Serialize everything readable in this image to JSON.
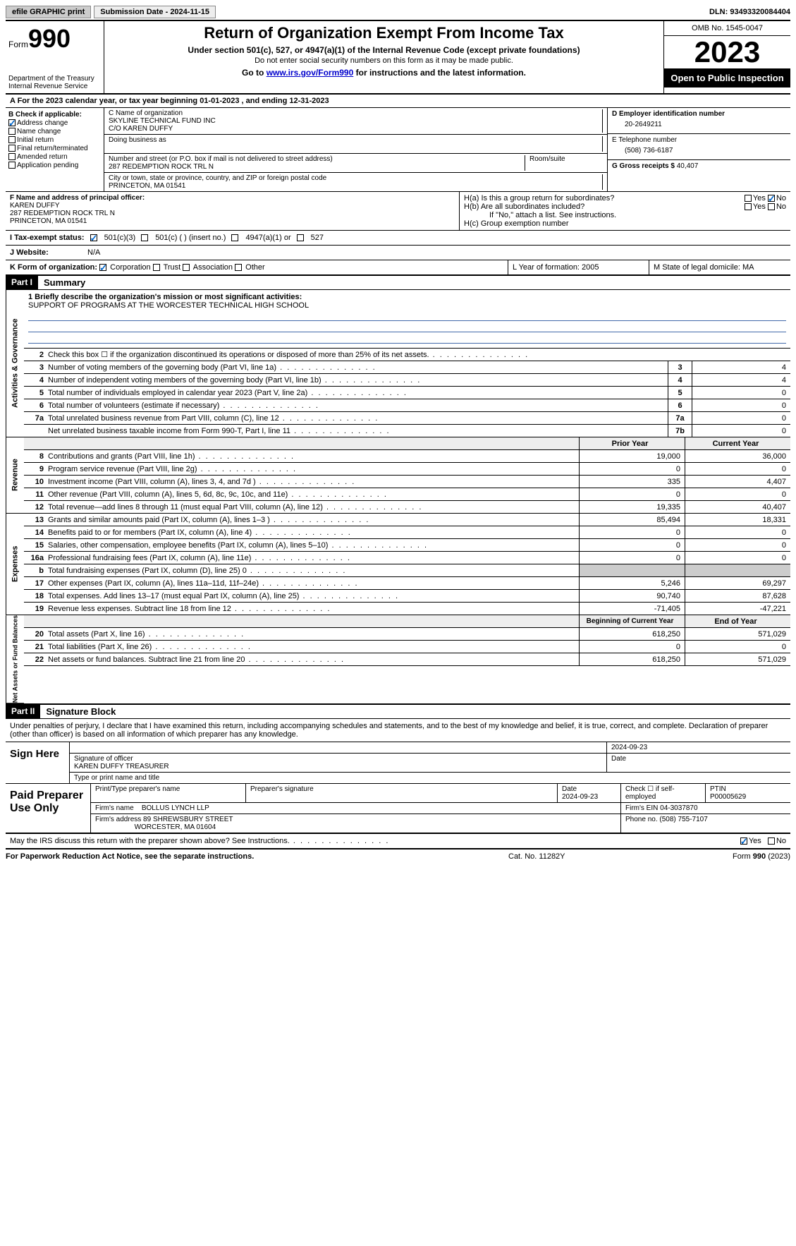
{
  "topbar": {
    "efile": "efile GRAPHIC print",
    "submission": "Submission Date - 2024-11-15",
    "dln": "DLN: 93493320084404"
  },
  "header": {
    "form_label": "Form",
    "form_num": "990",
    "dept": "Department of the Treasury\nInternal Revenue Service",
    "title": "Return of Organization Exempt From Income Tax",
    "sub1": "Under section 501(c), 527, or 4947(a)(1) of the Internal Revenue Code (except private foundations)",
    "sub2": "Do not enter social security numbers on this form as it may be made public.",
    "sub3_pre": "Go to ",
    "sub3_link": "www.irs.gov/Form990",
    "sub3_post": " for instructions and the latest information.",
    "omb": "OMB No. 1545-0047",
    "year": "2023",
    "open": "Open to Public Inspection"
  },
  "line_a": "A For the 2023 calendar year, or tax year beginning 01-01-2023   , and ending 12-31-2023",
  "box_b": {
    "label": "B Check if applicable:",
    "address": "Address change",
    "name": "Name change",
    "initial": "Initial return",
    "final": "Final return/terminated",
    "amended": "Amended return",
    "app": "Application pending"
  },
  "box_c": {
    "name_lbl": "C Name of organization",
    "name": "SKYLINE TECHNICAL FUND INC",
    "co": "C/O KAREN DUFFY",
    "dba_lbl": "Doing business as",
    "street_lbl": "Number and street (or P.O. box if mail is not delivered to street address)",
    "street": "287 REDEMPTION ROCK TRL N",
    "room_lbl": "Room/suite",
    "city_lbl": "City or town, state or province, country, and ZIP or foreign postal code",
    "city": "PRINCETON, MA  01541"
  },
  "box_d": {
    "lbl": "D Employer identification number",
    "val": "20-2649211"
  },
  "box_e": {
    "lbl": "E Telephone number",
    "val": "(508) 736-6187"
  },
  "box_g": {
    "lbl": "G Gross receipts $",
    "val": "40,407"
  },
  "box_f": {
    "lbl": "F  Name and address of principal officer:",
    "name": "KAREN DUFFY",
    "street": "287 REDEMPTION ROCK TRL N",
    "city": "PRINCETON, MA  01541"
  },
  "box_h": {
    "ha": "H(a)  Is this a group return for subordinates?",
    "hb": "H(b)  Are all subordinates included?",
    "hb_note": "If \"No,\" attach a list. See instructions.",
    "hc": "H(c)  Group exemption number",
    "yes": "Yes",
    "no": "No"
  },
  "row_i": {
    "lbl": "I   Tax-exempt status:",
    "o1": "501(c)(3)",
    "o2": "501(c) (  ) (insert no.)",
    "o3": "4947(a)(1) or",
    "o4": "527"
  },
  "row_j": {
    "lbl": "J   Website:",
    "val": "N/A"
  },
  "row_k": {
    "lbl": "K Form of organization:",
    "o1": "Corporation",
    "o2": "Trust",
    "o3": "Association",
    "o4": "Other",
    "l": "L Year of formation: 2005",
    "m": "M State of legal domicile: MA"
  },
  "part1": {
    "hdr": "Part I",
    "title": "Summary"
  },
  "mission": {
    "lbl": "1   Briefly describe the organization's mission or most significant activities:",
    "text": "SUPPORT OF PROGRAMS AT THE WORCESTER TECHNICAL HIGH SCHOOL"
  },
  "gov_lines": [
    {
      "n": "2",
      "d": "Check this box ☐ if the organization discontinued its operations or disposed of more than 25% of its net assets."
    },
    {
      "n": "3",
      "d": "Number of voting members of the governing body (Part VI, line 1a)",
      "box": "3",
      "v": "4"
    },
    {
      "n": "4",
      "d": "Number of independent voting members of the governing body (Part VI, line 1b)",
      "box": "4",
      "v": "4"
    },
    {
      "n": "5",
      "d": "Total number of individuals employed in calendar year 2023 (Part V, line 2a)",
      "box": "5",
      "v": "0"
    },
    {
      "n": "6",
      "d": "Total number of volunteers (estimate if necessary)",
      "box": "6",
      "v": "0"
    },
    {
      "n": "7a",
      "d": "Total unrelated business revenue from Part VIII, column (C), line 12",
      "box": "7a",
      "v": "0"
    },
    {
      "n": "",
      "d": "Net unrelated business taxable income from Form 990-T, Part I, line 11",
      "box": "7b",
      "v": "0"
    }
  ],
  "py_cy_hdr": {
    "py": "Prior Year",
    "cy": "Current Year"
  },
  "rev_lines": [
    {
      "n": "8",
      "d": "Contributions and grants (Part VIII, line 1h)",
      "py": "19,000",
      "cy": "36,000"
    },
    {
      "n": "9",
      "d": "Program service revenue (Part VIII, line 2g)",
      "py": "0",
      "cy": "0"
    },
    {
      "n": "10",
      "d": "Investment income (Part VIII, column (A), lines 3, 4, and 7d )",
      "py": "335",
      "cy": "4,407"
    },
    {
      "n": "11",
      "d": "Other revenue (Part VIII, column (A), lines 5, 6d, 8c, 9c, 10c, and 11e)",
      "py": "0",
      "cy": "0"
    },
    {
      "n": "12",
      "d": "Total revenue—add lines 8 through 11 (must equal Part VIII, column (A), line 12)",
      "py": "19,335",
      "cy": "40,407"
    }
  ],
  "exp_lines": [
    {
      "n": "13",
      "d": "Grants and similar amounts paid (Part IX, column (A), lines 1–3 )",
      "py": "85,494",
      "cy": "18,331"
    },
    {
      "n": "14",
      "d": "Benefits paid to or for members (Part IX, column (A), line 4)",
      "py": "0",
      "cy": "0"
    },
    {
      "n": "15",
      "d": "Salaries, other compensation, employee benefits (Part IX, column (A), lines 5–10)",
      "py": "0",
      "cy": "0"
    },
    {
      "n": "16a",
      "d": "Professional fundraising fees (Part IX, column (A), line 11e)",
      "py": "0",
      "cy": "0"
    },
    {
      "n": "b",
      "d": "Total fundraising expenses (Part IX, column (D), line 25) 0",
      "py": "shaded",
      "cy": "shaded"
    },
    {
      "n": "17",
      "d": "Other expenses (Part IX, column (A), lines 11a–11d, 11f–24e)",
      "py": "5,246",
      "cy": "69,297"
    },
    {
      "n": "18",
      "d": "Total expenses. Add lines 13–17 (must equal Part IX, column (A), line 25)",
      "py": "90,740",
      "cy": "87,628"
    },
    {
      "n": "19",
      "d": "Revenue less expenses. Subtract line 18 from line 12",
      "py": "-71,405",
      "cy": "-47,221"
    }
  ],
  "na_hdr": {
    "py": "Beginning of Current Year",
    "cy": "End of Year"
  },
  "na_lines": [
    {
      "n": "20",
      "d": "Total assets (Part X, line 16)",
      "py": "618,250",
      "cy": "571,029"
    },
    {
      "n": "21",
      "d": "Total liabilities (Part X, line 26)",
      "py": "0",
      "cy": "0"
    },
    {
      "n": "22",
      "d": "Net assets or fund balances. Subtract line 21 from line 20",
      "py": "618,250",
      "cy": "571,029"
    }
  ],
  "vtabs": {
    "gov": "Activities & Governance",
    "rev": "Revenue",
    "exp": "Expenses",
    "na": "Net Assets or Fund Balances"
  },
  "part2": {
    "hdr": "Part II",
    "title": "Signature Block"
  },
  "sig": {
    "decl": "Under penalties of perjury, I declare that I have examined this return, including accompanying schedules and statements, and to the best of my knowledge and belief, it is true, correct, and complete. Declaration of preparer (other than officer) is based on all information of which preparer has any knowledge.",
    "sign_here": "Sign Here",
    "date1": "2024-09-23",
    "sig_lbl": "Signature of officer",
    "officer": "KAREN DUFFY TREASURER",
    "type_lbl": "Type or print name and title",
    "date_lbl": "Date"
  },
  "prep": {
    "title": "Paid Preparer Use Only",
    "name_lbl": "Print/Type preparer's name",
    "sig_lbl": "Preparer's signature",
    "date_lbl": "Date",
    "date": "2024-09-23",
    "self_lbl": "Check ☐ if self-employed",
    "ptin_lbl": "PTIN",
    "ptin": "P00005629",
    "firm_lbl": "Firm's name",
    "firm": "BOLLUS LYNCH LLP",
    "ein_lbl": "Firm's EIN",
    "ein": "04-3037870",
    "addr_lbl": "Firm's address",
    "addr1": "89 SHREWSBURY STREET",
    "addr2": "WORCESTER, MA  01604",
    "phone_lbl": "Phone no.",
    "phone": "(508) 755-7107"
  },
  "discuss": {
    "q": "May the IRS discuss this return with the preparer shown above? See Instructions.",
    "yes": "Yes",
    "no": "No"
  },
  "footer": {
    "l": "For Paperwork Reduction Act Notice, see the separate instructions.",
    "m": "Cat. No. 11282Y",
    "r_pre": "Form ",
    "r_b": "990",
    "r_post": " (2023)"
  }
}
